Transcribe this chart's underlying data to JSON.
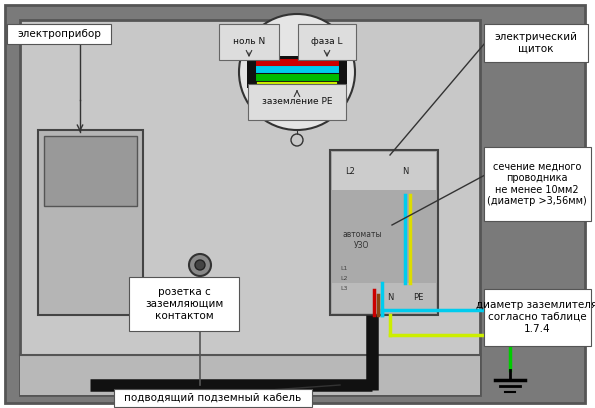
{
  "label_electropribor": "электроприбор",
  "label_elek_schitok": "электрический\nщиток",
  "label_sechen": "сечение медного\nпроводника\nне менее 10мм2\n(диаметр >3,56мм)",
  "label_rozet": "розетка с\nзаземляющим\nконтактом",
  "label_podvod": "подводящий подземный кабель",
  "label_diam": "диаметр заземлителя\nсогласно таблице\n1.7.4",
  "label_nol": "ноль N",
  "label_faza": "фаза L",
  "label_zazeml": "заземление PE",
  "label_avtomaty": "автоматы\nУЗО",
  "label_L2": "L2",
  "label_N1": "N",
  "label_N2": "N",
  "label_PE": "PE",
  "label_L1L2L3": [
    "L1",
    "L2",
    "L3"
  ]
}
